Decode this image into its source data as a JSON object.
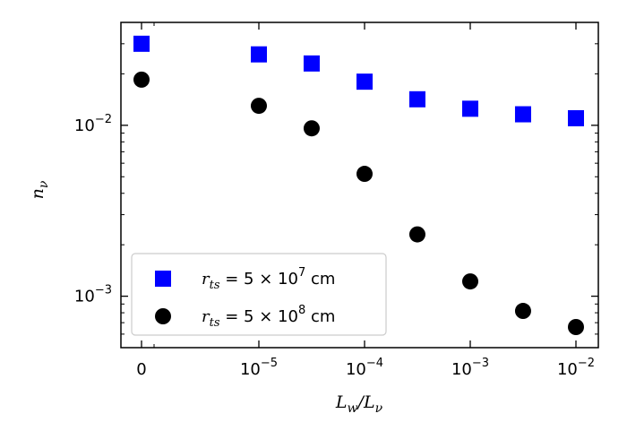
{
  "chart_data": {
    "type": "scatter",
    "xlabel": "L_w/L_ν",
    "ylabel": "n_ν",
    "x_categories": [
      "0",
      "1e-5",
      "3.16e-5",
      "1e-4",
      "3.16e-4",
      "1e-3",
      "3.16e-3",
      "1e-2"
    ],
    "x_ticks": [
      {
        "value": "0",
        "base": "0",
        "exp": ""
      },
      {
        "value": "1e-5",
        "base": "10",
        "exp": "−5"
      },
      {
        "value": "1e-4",
        "base": "10",
        "exp": "−4"
      },
      {
        "value": "1e-3",
        "base": "10",
        "exp": "−3"
      },
      {
        "value": "1e-2",
        "base": "10",
        "exp": "−2"
      }
    ],
    "y_scale": "log",
    "ylim": [
      0.0005,
      0.04
    ],
    "y_ticks": [
      {
        "value": 0.01,
        "base": "10",
        "exp": "−2"
      },
      {
        "value": 0.001,
        "base": "10",
        "exp": "−3"
      }
    ],
    "legend_position": "lower-left",
    "series": [
      {
        "name_prefix": "r",
        "name_sub": "ts",
        "name_mid": " = 5 × 10",
        "name_exp": "7",
        "name_unit": " cm",
        "marker": "square",
        "color": "#0000ff",
        "x": [
          "0",
          "1e-5",
          "3.16e-5",
          "1e-4",
          "3.16e-4",
          "1e-3",
          "3.16e-3",
          "1e-2"
        ],
        "values": [
          0.03,
          0.026,
          0.023,
          0.018,
          0.0142,
          0.0125,
          0.0116,
          0.011
        ]
      },
      {
        "name_prefix": "r",
        "name_sub": "ts",
        "name_mid": " = 5 × 10",
        "name_exp": "8",
        "name_unit": " cm",
        "marker": "circle",
        "color": "#000000",
        "x": [
          "0",
          "1e-5",
          "3.16e-5",
          "1e-4",
          "3.16e-4",
          "1e-3",
          "3.16e-3",
          "1e-2"
        ],
        "values": [
          0.0185,
          0.013,
          0.0096,
          0.0052,
          0.0023,
          0.00122,
          0.00082,
          0.00066
        ]
      }
    ]
  }
}
